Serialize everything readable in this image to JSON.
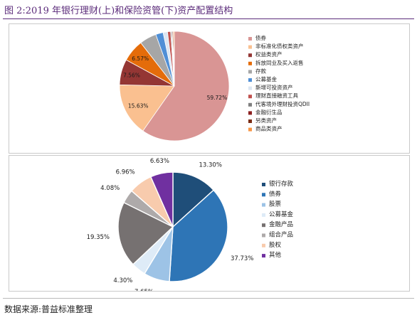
{
  "figure": {
    "title": "图 2:2019 年银行理财(上)和保险资管(下)资产配置结构",
    "source": "数据来源:普益标准整理",
    "title_color": "#5b2b7a"
  },
  "chart_data": [
    {
      "type": "pie",
      "categories": [
        "债券",
        "非标准化债权类资产",
        "权益类资产",
        "拆放同业及买入返售",
        "存款",
        "公募基金",
        "新增可投资资产",
        "理财直接融资工具",
        "代客境外理财投资QDII",
        "金融衍生品",
        "另类资产",
        "商品类资产"
      ],
      "values": [
        59.72,
        15.63,
        7.56,
        6.57,
        5.0,
        2.2,
        1.3,
        0.9,
        0.3,
        0.2,
        0.3,
        0.3
      ],
      "data_labels": [
        "59.72%",
        "15.63%",
        "7.56%",
        "6.57%",
        "",
        "",
        "",
        "",
        "",
        "",
        "",
        ""
      ],
      "colors": [
        "#d99594",
        "#fac090",
        "#943634",
        "#e46c0a",
        "#a6a6a6",
        "#4f8fd6",
        "#dce6f2",
        "#c0504d",
        "#7f7f7f",
        "#8c1f1f",
        "#7a2c14",
        "#f79646"
      ],
      "legend_position": "right"
    },
    {
      "type": "pie",
      "categories": [
        "银行存款",
        "债券",
        "股票",
        "公募基金",
        "金融产品",
        "组合产品",
        "股权",
        "其他"
      ],
      "values": [
        13.3,
        37.73,
        7.65,
        4.3,
        19.35,
        4.08,
        6.96,
        6.63
      ],
      "data_labels": [
        "13.30%",
        "37.73%",
        "7.65%",
        "4.30%",
        "19.35%",
        "4.08%",
        "6.96%",
        "6.63%"
      ],
      "colors": [
        "#1f4e79",
        "#2e75b6",
        "#9dc3e6",
        "#deebf7",
        "#767171",
        "#aeaaaa",
        "#f8cbad",
        "#7030a0"
      ],
      "legend_position": "right"
    }
  ]
}
